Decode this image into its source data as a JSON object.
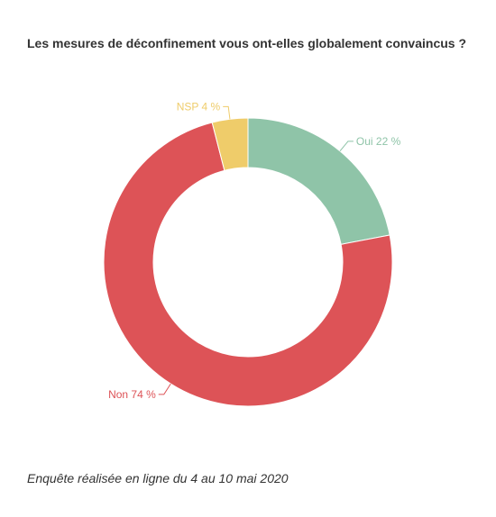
{
  "chart_data": {
    "type": "pie",
    "donut": true,
    "title": "Les mesures de déconfinement vous ont-elles globalement convaincus ?",
    "slices": [
      {
        "name": "Oui",
        "value": 22,
        "label": "Oui 22 %",
        "color": "#8fc4a8"
      },
      {
        "name": "Non",
        "value": 74,
        "label": "Non 74 %",
        "color": "#dd5357"
      },
      {
        "name": "NSP",
        "value": 4,
        "label": "NSP 4 %",
        "color": "#efcc6a"
      }
    ],
    "footnote": "Enquête réalisée en ligne du 4 au 10 mai 2020"
  }
}
